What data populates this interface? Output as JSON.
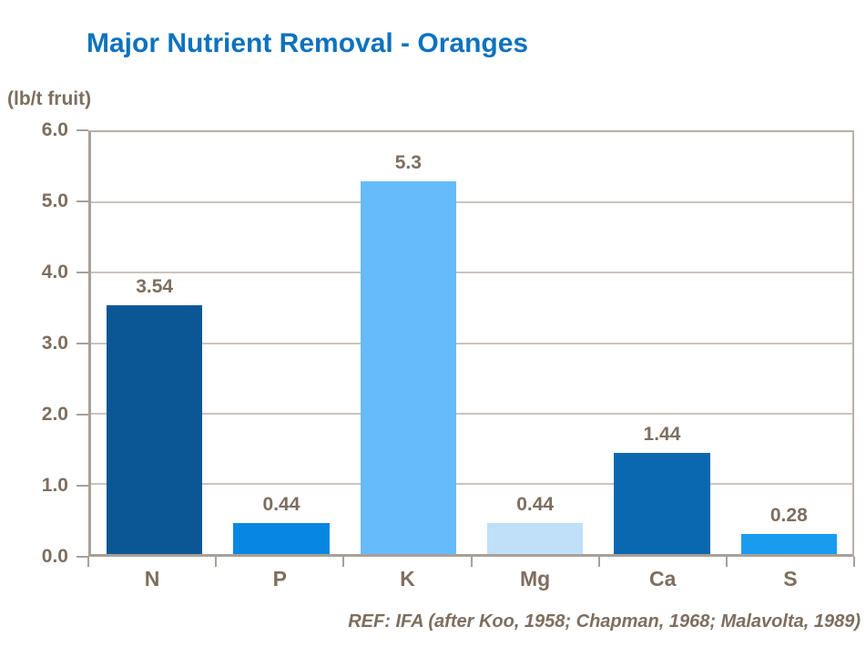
{
  "title": "Major Nutrient Removal - Oranges",
  "y_axis_unit_label": "(lb/t fruit)",
  "reference_note": "REF: IFA (after Koo, 1958; Chapman, 1968; Malavolta, 1989)",
  "colors": {
    "title_text": "#0E72BE",
    "axis_text": "#7D6E5F",
    "gridline": "#CCC4BB",
    "axis_line": "#A8A098",
    "background": "#FFFFFF"
  },
  "chart_data": {
    "type": "bar",
    "title": "Major Nutrient Removal - Oranges",
    "ylabel": "(lb/t fruit)",
    "xlabel": "",
    "categories": [
      "N",
      "P",
      "K",
      "Mg",
      "Ca",
      "S"
    ],
    "values": [
      3.54,
      0.44,
      5.3,
      0.44,
      1.44,
      0.28
    ],
    "value_labels": [
      "3.54",
      "0.44",
      "5.3",
      "0.44",
      "1.44",
      "0.28"
    ],
    "bar_colors": [
      "#0B5796",
      "#0887E2",
      "#66BBFA",
      "#BFE0F8",
      "#0A68B1",
      "#199CF0"
    ],
    "ylim": [
      0,
      6
    ],
    "y_ticks": [
      "6.0",
      "5.0",
      "4.0",
      "3.0",
      "2.0",
      "1.0",
      "0.0"
    ],
    "grid": "horizontal",
    "legend": "none",
    "annotation": "REF: IFA (after Koo, 1958; Chapman, 1968; Malavolta, 1989)"
  }
}
